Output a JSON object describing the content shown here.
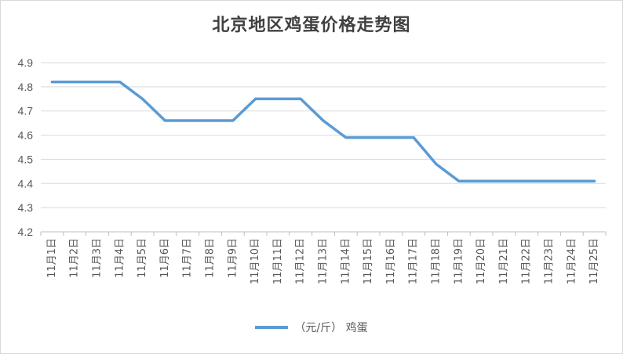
{
  "chart_data": {
    "type": "line",
    "title": "北京地区鸡蛋价格走势图",
    "categories": [
      "11月1日",
      "11月2日",
      "11月3日",
      "11月4日",
      "11月5日",
      "11月6日",
      "11月7日",
      "11月8日",
      "11月9日",
      "11月10日",
      "11月11日",
      "11月12日",
      "11月13日",
      "11月14日",
      "11月15日",
      "11月16日",
      "11月17日",
      "11月18日",
      "11月19日",
      "11月20日",
      "11月21日",
      "11月22日",
      "11月23日",
      "11月24日",
      "11月25日"
    ],
    "series": [
      {
        "name": "（元/斤） 鸡蛋",
        "color": "#5b9bd5",
        "values": [
          4.82,
          4.82,
          4.82,
          4.82,
          4.75,
          4.66,
          4.66,
          4.66,
          4.66,
          4.75,
          4.75,
          4.75,
          4.66,
          4.59,
          4.59,
          4.59,
          4.59,
          4.48,
          4.41,
          4.41,
          4.41,
          4.41,
          4.41,
          4.41,
          4.41
        ]
      }
    ],
    "yticks": [
      "4.2",
      "4.3",
      "4.4",
      "4.5",
      "4.6",
      "4.7",
      "4.8",
      "4.9"
    ],
    "ylim": [
      4.2,
      4.9
    ],
    "grid": true,
    "legend_position": "bottom",
    "xlabel": "",
    "ylabel": ""
  }
}
